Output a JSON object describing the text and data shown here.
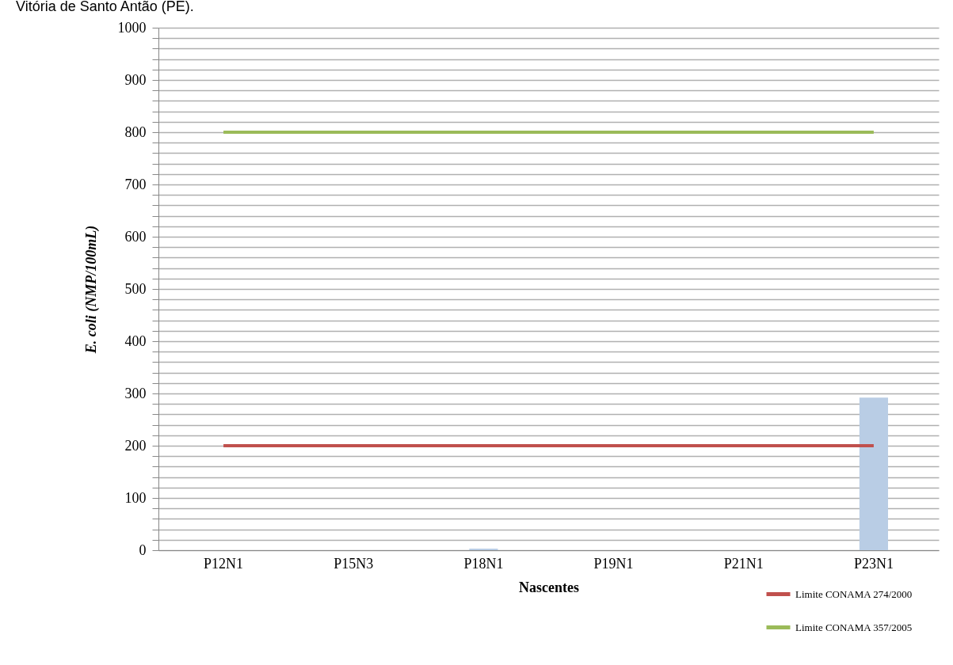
{
  "chart_data": {
    "type": "bar",
    "title": "Vitória de Santo Antão (PE).",
    "xlabel": "Nascentes",
    "ylabel": "E. coli (NMP/100mL)",
    "categories": [
      "P12N1",
      "P15N3",
      "P18N1",
      "P19N1",
      "P21N1",
      "P23N1"
    ],
    "series": [
      {
        "color": "#b9cde5",
        "values": [
          0,
          0,
          3,
          0,
          0,
          292
        ]
      },
      {
        "type": "line",
        "name": "Limite CONAMA 274/2000",
        "color": "#c0504d",
        "values": [
          200,
          200,
          200,
          200,
          200,
          200
        ]
      },
      {
        "type": "line",
        "name": "Limite CONAMA 357/2005",
        "color": "#9bbb59",
        "values": [
          800,
          800,
          800,
          800,
          800,
          800
        ]
      }
    ],
    "ylim": [
      0,
      1000
    ],
    "yticks": [
      0,
      {
        "value": 20,
        "label": null
      },
      {
        "value": 40,
        "label": null
      },
      {
        "value": 60,
        "label": null
      },
      {
        "value": 80,
        "label": null
      },
      100,
      {
        "value": 120,
        "label": null
      },
      {
        "value": 140,
        "label": null
      },
      {
        "value": 160,
        "label": null
      },
      {
        "value": 180,
        "label": null
      },
      200,
      {
        "value": 220,
        "label": null
      },
      {
        "value": 240,
        "label": null
      },
      {
        "value": 260,
        "label": null
      },
      {
        "value": 280,
        "label": null
      },
      300,
      {
        "value": 320,
        "label": null
      },
      {
        "value": 340,
        "label": null
      },
      {
        "value": 360,
        "label": null
      },
      {
        "value": 380,
        "label": null
      },
      400,
      {
        "value": 420,
        "label": null
      },
      {
        "value": 440,
        "label": null
      },
      {
        "value": 460,
        "label": null
      },
      {
        "value": 480,
        "label": null
      },
      500,
      {
        "value": 520,
        "label": null
      },
      {
        "value": 540,
        "label": null
      },
      {
        "value": 560,
        "label": null
      },
      {
        "value": 580,
        "label": null
      },
      600,
      {
        "value": 620,
        "label": null
      },
      {
        "value": 640,
        "label": null
      },
      {
        "value": 660,
        "label": null
      },
      {
        "value": 680,
        "label": null
      },
      700,
      {
        "value": 720,
        "label": null
      },
      {
        "value": 740,
        "label": null
      },
      {
        "value": 760,
        "label": null
      },
      {
        "value": 780,
        "label": null
      },
      800,
      {
        "value": 820,
        "label": null
      },
      {
        "value": 840,
        "label": null
      },
      {
        "value": 860,
        "label": null
      },
      {
        "value": 880,
        "label": null
      },
      900,
      {
        "value": 920,
        "label": null
      },
      {
        "value": 940,
        "label": null
      },
      {
        "value": 960,
        "label": null
      },
      {
        "value": 980,
        "label": null
      },
      1000
    ],
    "grid": "y",
    "legend": "bottom right"
  }
}
